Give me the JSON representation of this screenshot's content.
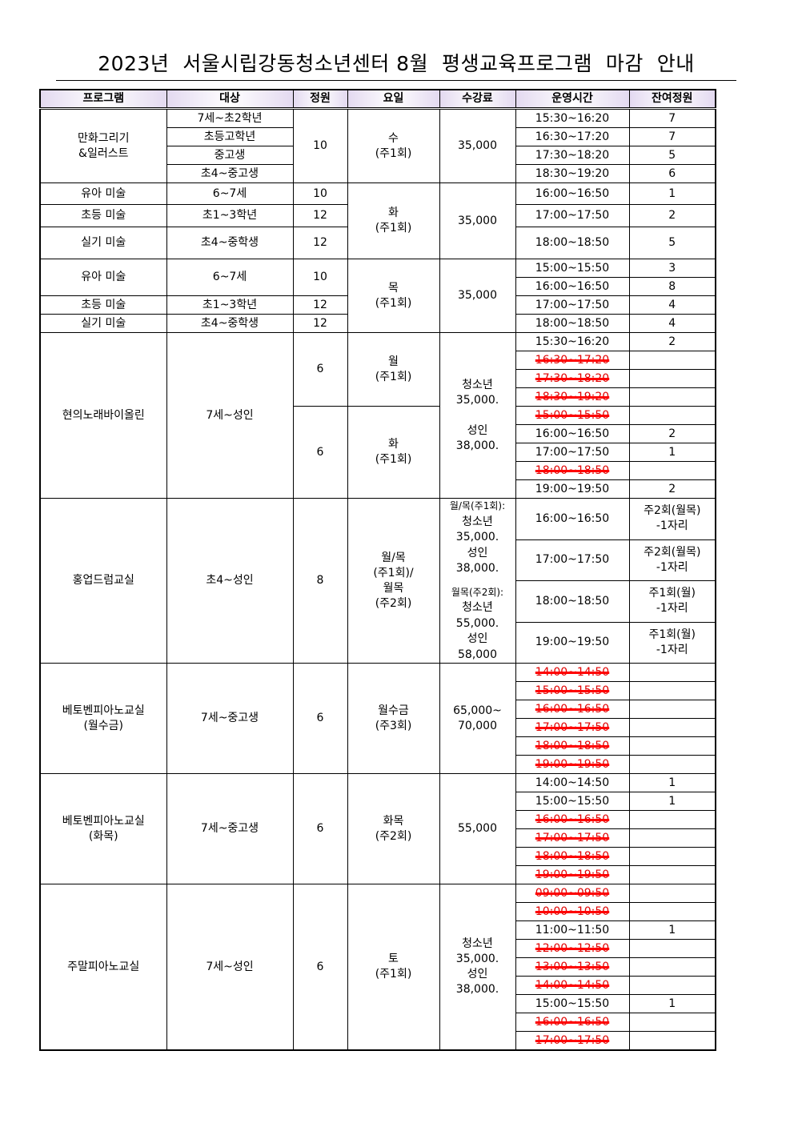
{
  "title": "2023년  서울시립강동청소년센터 8월  평생교육프로그램  마감  안내",
  "headers": [
    "프로그램",
    "대상",
    "정원",
    "요일",
    "수강료",
    "운영시간",
    "잔여정원"
  ],
  "colors": {
    "struck": "#e00000",
    "header_bg": "#e3d9f0"
  },
  "g0": {
    "program": "만화그리기\n&일러스트",
    "targets": [
      "7세~초2학년",
      "초등고학년",
      "중고생",
      "초4~중고생"
    ],
    "cap": "10",
    "day": "수\n(주1회)",
    "fee": "35,000",
    "slots": [
      {
        "t": "15:30~16:20",
        "r": "7"
      },
      {
        "t": "16:30~17:20",
        "r": "7"
      },
      {
        "t": "17:30~18:20",
        "r": "5"
      },
      {
        "t": "18:30~19:20",
        "r": "6"
      }
    ]
  },
  "g1": {
    "rows": [
      {
        "p": "유아 미술",
        "tg": "6~7세",
        "c": "10",
        "t": "16:00~16:50",
        "r": "1"
      },
      {
        "p": "초등 미술",
        "tg": "초1~3학년",
        "c": "12",
        "t": "17:00~17:50",
        "r": "2"
      },
      {
        "p": "실기 미술",
        "tg": "초4~중학생",
        "c": "12",
        "t": "18:00~18:50",
        "r": "5"
      }
    ],
    "day": "화\n(주1회)",
    "fee": "35,000"
  },
  "g2": {
    "rows": [
      {
        "p": "유아 미술",
        "tg": "6~7세",
        "c": "10"
      },
      {
        "p": "초등 미술",
        "tg": "초1~3학년",
        "c": "12"
      },
      {
        "p": "실기 미술",
        "tg": "초4~중학생",
        "c": "12"
      }
    ],
    "day": "목\n(주1회)",
    "fee": "35,000",
    "slots": [
      {
        "t": "15:00~15:50",
        "r": "3"
      },
      {
        "t": "16:00~16:50",
        "r": "8"
      },
      {
        "t": "17:00~17:50",
        "r": "4"
      },
      {
        "t": "18:00~18:50",
        "r": "4"
      }
    ]
  },
  "g3": {
    "program": "현의노래바이올린",
    "target": "7세~성인",
    "cap1": "6",
    "day1": "월\n(주1회)",
    "cap2": "6",
    "day2": "화\n(주1회)",
    "fee": "청소년\n35,000.\n\n성인\n38,000.",
    "slots": [
      {
        "t": "15:30~16:20",
        "r": "2"
      },
      {
        "t": "16:30~17:20",
        "r": "",
        "closed": true
      },
      {
        "t": "17:30~18:20",
        "r": "",
        "closed": true
      },
      {
        "t": "18:30~19:20",
        "r": "",
        "closed": true
      },
      {
        "t": "15:00~15:50",
        "r": "",
        "closed": true
      },
      {
        "t": "16:00~16:50",
        "r": "2"
      },
      {
        "t": "17:00~17:50",
        "r": "1"
      },
      {
        "t": "18:00~18:50",
        "r": "",
        "closed": true
      },
      {
        "t": "19:00~19:50",
        "r": "2"
      }
    ]
  },
  "g4": {
    "program": "홍업드럼교실",
    "target": "초4~성인",
    "cap": "8",
    "day": "월/목\n(주1회)/\n월목\n(주2회)",
    "fee1": "월/목(주1회):",
    "fee2": "청소년\n35,000.\n성인\n38,000.",
    "fee3": "월목(주2회):",
    "fee4": "청소년\n55,000.\n성인\n58,000",
    "slots": [
      {
        "t": "16:00~16:50",
        "r": "주2회(월목)\n-1자리"
      },
      {
        "t": "17:00~17:50",
        "r": "주2회(월목)\n-1자리"
      },
      {
        "t": "18:00~18:50",
        "r": "주1회(월)\n-1자리"
      },
      {
        "t": "19:00~19:50",
        "r": "주1회(월)\n-1자리"
      }
    ]
  },
  "g5": {
    "program": "베토벤피아노교실\n(월수금)",
    "target": "7세~중고생",
    "cap": "6",
    "day": "월수금\n(주3회)",
    "fee": "65,000~\n70,000",
    "slots": [
      {
        "t": "14:00~14:50",
        "r": "",
        "closed": true
      },
      {
        "t": "15:00~15:50",
        "r": "",
        "closed": true
      },
      {
        "t": "16:00~16:50",
        "r": "",
        "closed": true
      },
      {
        "t": "17:00~17:50",
        "r": "",
        "closed": true
      },
      {
        "t": "18:00~18:50",
        "r": "",
        "closed": true
      },
      {
        "t": "19:00~19:50",
        "r": "",
        "closed": true
      }
    ]
  },
  "g6": {
    "program": "베토벤피아노교실\n(화목)",
    "target": "7세~중고생",
    "cap": "6",
    "day": "화목\n(주2회)",
    "fee": "55,000",
    "slots": [
      {
        "t": "14:00~14:50",
        "r": "1"
      },
      {
        "t": "15:00~15:50",
        "r": "1"
      },
      {
        "t": "16:00~16:50",
        "r": "",
        "closed": true
      },
      {
        "t": "17:00~17:50",
        "r": "",
        "closed": true
      },
      {
        "t": "18:00~18:50",
        "r": "",
        "closed": true
      },
      {
        "t": "19:00~19:50",
        "r": "",
        "closed": true
      }
    ]
  },
  "g7": {
    "program": "주말피아노교실",
    "target": "7세~성인",
    "cap": "6",
    "day": "토\n(주1회)",
    "fee": "청소년\n35,000.\n성인\n38,000.",
    "slots": [
      {
        "t": "09:00~09:50",
        "r": "",
        "closed": true
      },
      {
        "t": "10:00~10:50",
        "r": "",
        "closed": true
      },
      {
        "t": "11:00~11:50",
        "r": "1"
      },
      {
        "t": "12:00~12:50",
        "r": "",
        "closed": true
      },
      {
        "t": "13:00~13:50",
        "r": "",
        "closed": true
      },
      {
        "t": "14:00~14:50",
        "r": "",
        "closed": true
      },
      {
        "t": "15:00~15:50",
        "r": "1"
      },
      {
        "t": "16:00~16:50",
        "r": "",
        "closed": true
      },
      {
        "t": "17:00~17:50",
        "r": "",
        "closed": true
      }
    ]
  }
}
